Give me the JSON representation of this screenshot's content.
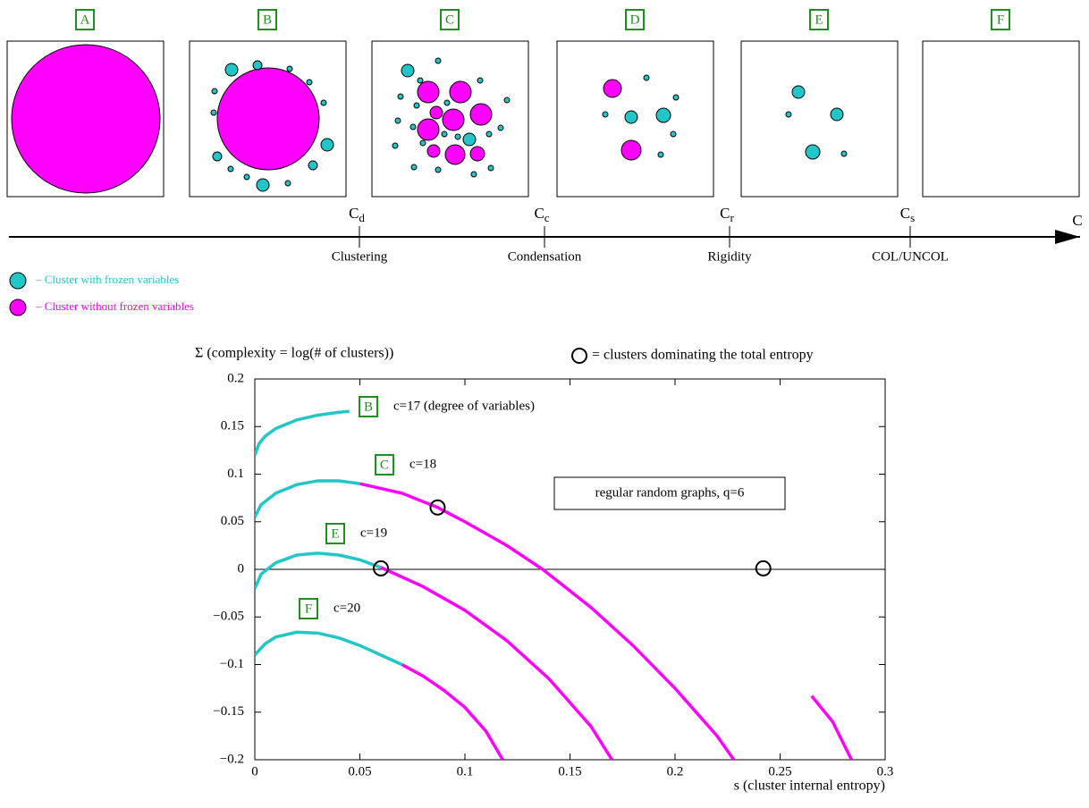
{
  "diagram": {
    "panels": [
      "A",
      "B",
      "C",
      "D",
      "E",
      "F"
    ],
    "axis_label": "C",
    "thresholds": [
      {
        "symbol": "C",
        "sub": "d",
        "label": "Clustering"
      },
      {
        "symbol": "C",
        "sub": "c",
        "label": "Condensation"
      },
      {
        "symbol": "C",
        "sub": "r",
        "label": "Rigidity"
      },
      {
        "symbol": "C",
        "sub": "s",
        "label": "COL/UNCOL"
      }
    ],
    "legend": [
      "– Cluster with frozen variables",
      "– Cluster without frozen variables"
    ]
  },
  "chart_data": {
    "type": "line",
    "ylabel": "Σ (complexity = log(# of clusters))",
    "xlabel": "s (cluster internal entropy)",
    "marker_legend": "= clusters dominating the total entropy",
    "box_text": "regular random graphs, q=6",
    "annotations": [
      {
        "tag": "B",
        "text": "c=17 (degree of variables)"
      },
      {
        "tag": "C",
        "text": "c=18"
      },
      {
        "tag": "E",
        "text": "c=19"
      },
      {
        "tag": "F",
        "text": "c=20"
      }
    ],
    "xlim": [
      0,
      0.3
    ],
    "ylim": [
      -0.2,
      0.2
    ],
    "xticks": [
      0,
      0.05,
      0.1,
      0.15,
      0.2,
      0.25,
      0.3
    ],
    "yticks": [
      {
        "value": -0.2,
        "label": "−0.2"
      },
      {
        "value": -0.15,
        "label": "−0.15"
      },
      {
        "value": -0.1,
        "label": "−0.1"
      },
      {
        "value": -0.05,
        "label": "−0.05"
      },
      0,
      0.05,
      0.1,
      0.15,
      0.2
    ],
    "series": [
      {
        "color": "#22c6c8",
        "x": [
          0,
          0.002,
          0.005,
          0.01,
          0.02,
          0.03,
          0.04,
          0.045
        ],
        "values": [
          0.12,
          0.132,
          0.14,
          0.148,
          0.157,
          0.162,
          0.165,
          0.166
        ]
      },
      {
        "color": "#22c6c8",
        "x": [
          0,
          0.003,
          0.01,
          0.02,
          0.03,
          0.04,
          0.05
        ],
        "values": [
          0.055,
          0.068,
          0.08,
          0.089,
          0.093,
          0.093,
          0.09
        ]
      },
      {
        "color": "#ff00ff",
        "x": [
          0.05,
          0.07,
          0.087,
          0.1,
          0.12,
          0.137,
          0.16,
          0.18,
          0.2,
          0.22,
          0.228
        ],
        "values": [
          0.09,
          0.08,
          0.065,
          0.05,
          0.025,
          0,
          -0.04,
          -0.08,
          -0.125,
          -0.175,
          -0.2
        ]
      },
      {
        "color": "#22c6c8",
        "x": [
          0,
          0.003,
          0.01,
          0.02,
          0.03,
          0.04,
          0.05,
          0.06
        ],
        "values": [
          -0.02,
          -0.005,
          0.007,
          0.015,
          0.017,
          0.015,
          0.01,
          0.002
        ]
      },
      {
        "color": "#ff00ff",
        "x": [
          0.06,
          0.08,
          0.1,
          0.12,
          0.14,
          0.16,
          0.17
        ],
        "values": [
          0.002,
          -0.018,
          -0.043,
          -0.075,
          -0.115,
          -0.165,
          -0.2
        ]
      },
      {
        "color": "#22c6c8",
        "x": [
          0,
          0.005,
          0.01,
          0.02,
          0.03,
          0.04,
          0.05,
          0.06,
          0.07
        ],
        "values": [
          -0.09,
          -0.078,
          -0.071,
          -0.066,
          -0.067,
          -0.072,
          -0.08,
          -0.09,
          -0.1
        ]
      },
      {
        "color": "#ff00ff",
        "x": [
          0.07,
          0.08,
          0.09,
          0.1,
          0.11,
          0.118
        ],
        "values": [
          -0.1,
          -0.112,
          -0.127,
          -0.145,
          -0.17,
          -0.2
        ]
      },
      {
        "color": "#ff00ff",
        "x": [
          0.265,
          0.275,
          0.284
        ],
        "values": [
          -0.133,
          -0.16,
          -0.2
        ]
      }
    ],
    "markers": {
      "x": [
        0.087,
        0.06,
        0.242
      ],
      "values": [
        0.065,
        0.001,
        0.001
      ]
    }
  }
}
